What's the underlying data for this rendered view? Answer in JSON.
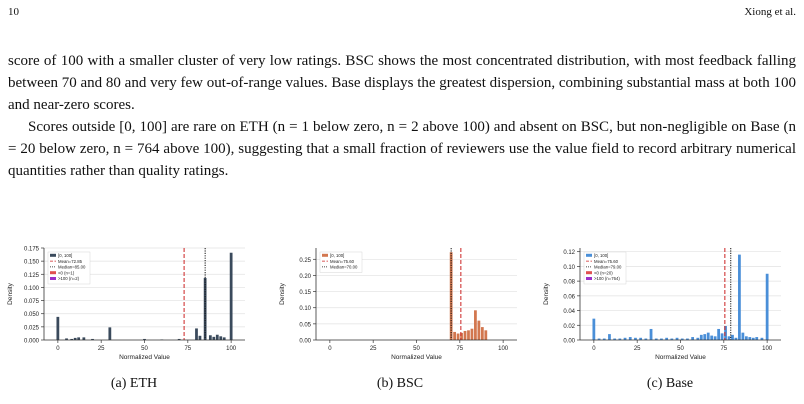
{
  "header": {
    "page_number": "10",
    "authors": "Xiong et al."
  },
  "paragraphs": [
    "score of 100 with a smaller cluster of very low ratings. BSC shows the most concentrated distribution, with most feedback falling between 70 and 80 and very few out-of-range values. Base displays the greatest dispersion, combining substantial mass at both 100 and near-zero scores.",
    "Scores outside [0, 100] are rare on ETH (n = 1 below zero, n = 2 above 100) and absent on BSC, but non-negligible on Base (n = 20 below zero, n = 764 above 100), suggesting that a small fraction of reviewers use the value field to record arbitrary numerical quantities rather than quality ratings."
  ],
  "colors": {
    "eth": "#3a4a5c",
    "bsc": "#d2774f",
    "base": "#4a8fd8",
    "mean": "#cc2222",
    "median": "#111111",
    "below": "#e05050",
    "above": "#9b30c8"
  },
  "chart_data": [
    {
      "type": "bar",
      "caption": "(a) ETH",
      "xlabel": "Normalized Value",
      "ylabel": "Density",
      "xlim": [
        -8,
        108
      ],
      "ylim": [
        0,
        0.175
      ],
      "xticks": [
        0,
        25,
        50,
        75,
        100
      ],
      "yticks": [
        "0.000",
        "0.025",
        "0.050",
        "0.075",
        "0.100",
        "0.125",
        "0.150",
        "0.175"
      ],
      "grid": true,
      "legend_position": "top-left",
      "legend": [
        "[0, 100]",
        "Mean=72.85",
        "Median=85.00",
        "<0 (n=1)",
        ">100 (n=2)"
      ],
      "mean": 72.85,
      "median": 85.0,
      "bar_color": "#3a4a5c",
      "bins": [
        {
          "x": 0,
          "y": 0.044
        },
        {
          "x": 5,
          "y": 0.003
        },
        {
          "x": 8,
          "y": 0.002
        },
        {
          "x": 10,
          "y": 0.004
        },
        {
          "x": 12,
          "y": 0.005
        },
        {
          "x": 15,
          "y": 0.005
        },
        {
          "x": 20,
          "y": 0.002
        },
        {
          "x": 30,
          "y": 0.024
        },
        {
          "x": 50,
          "y": 0.002
        },
        {
          "x": 60,
          "y": 0.001
        },
        {
          "x": 70,
          "y": 0.002
        },
        {
          "x": 80,
          "y": 0.022
        },
        {
          "x": 82,
          "y": 0.008
        },
        {
          "x": 85,
          "y": 0.118
        },
        {
          "x": 88,
          "y": 0.009
        },
        {
          "x": 90,
          "y": 0.006
        },
        {
          "x": 92,
          "y": 0.01
        },
        {
          "x": 94,
          "y": 0.007
        },
        {
          "x": 96,
          "y": 0.005
        },
        {
          "x": 100,
          "y": 0.166
        }
      ]
    },
    {
      "type": "bar",
      "caption": "(b) BSC",
      "xlabel": "Normalized Value",
      "ylabel": "Density",
      "xlim": [
        -8,
        108
      ],
      "ylim": [
        0,
        0.285
      ],
      "xticks": [
        0,
        25,
        50,
        75,
        100
      ],
      "yticks": [
        "0.00",
        "0.05",
        "0.10",
        "0.15",
        "0.20",
        "0.25"
      ],
      "grid": true,
      "legend_position": "top-left",
      "legend": [
        "[0, 100]",
        "Mean=75.60",
        "Median=70.00"
      ],
      "mean": 75.6,
      "median": 70.0,
      "bar_color": "#d2774f",
      "bins": [
        {
          "x": 70,
          "y": 0.272
        },
        {
          "x": 72,
          "y": 0.025
        },
        {
          "x": 74,
          "y": 0.02
        },
        {
          "x": 76,
          "y": 0.022
        },
        {
          "x": 78,
          "y": 0.028
        },
        {
          "x": 80,
          "y": 0.03
        },
        {
          "x": 82,
          "y": 0.035
        },
        {
          "x": 84,
          "y": 0.092
        },
        {
          "x": 86,
          "y": 0.06
        },
        {
          "x": 88,
          "y": 0.04
        },
        {
          "x": 90,
          "y": 0.03
        }
      ]
    },
    {
      "type": "bar",
      "caption": "(c) Base",
      "xlabel": "Normalized Value",
      "ylabel": "Density",
      "xlim": [
        -8,
        108
      ],
      "ylim": [
        0,
        0.125
      ],
      "xticks": [
        0,
        25,
        50,
        75,
        100
      ],
      "yticks": [
        "0.00",
        "0.02",
        "0.04",
        "0.06",
        "0.08",
        "0.10",
        "0.12"
      ],
      "grid": true,
      "legend_position": "top-left",
      "legend": [
        "[0, 100]",
        "Mean=75.60",
        "Median=79.00",
        "<0 (n=20)",
        ">100 (n=764)"
      ],
      "mean": 75.6,
      "median": 79.0,
      "bar_color": "#4a8fd8",
      "bins": [
        {
          "x": 0,
          "y": 0.029
        },
        {
          "x": 3,
          "y": 0.002
        },
        {
          "x": 6,
          "y": 0.002
        },
        {
          "x": 9,
          "y": 0.008
        },
        {
          "x": 12,
          "y": 0.002
        },
        {
          "x": 15,
          "y": 0.002
        },
        {
          "x": 18,
          "y": 0.003
        },
        {
          "x": 21,
          "y": 0.004
        },
        {
          "x": 24,
          "y": 0.003
        },
        {
          "x": 27,
          "y": 0.003
        },
        {
          "x": 30,
          "y": 0.002
        },
        {
          "x": 33,
          "y": 0.015
        },
        {
          "x": 36,
          "y": 0.002
        },
        {
          "x": 39,
          "y": 0.002
        },
        {
          "x": 42,
          "y": 0.003
        },
        {
          "x": 45,
          "y": 0.002
        },
        {
          "x": 48,
          "y": 0.003
        },
        {
          "x": 51,
          "y": 0.002
        },
        {
          "x": 54,
          "y": 0.002
        },
        {
          "x": 57,
          "y": 0.004
        },
        {
          "x": 60,
          "y": 0.003
        },
        {
          "x": 62,
          "y": 0.007
        },
        {
          "x": 64,
          "y": 0.008
        },
        {
          "x": 66,
          "y": 0.01
        },
        {
          "x": 68,
          "y": 0.006
        },
        {
          "x": 70,
          "y": 0.005
        },
        {
          "x": 72,
          "y": 0.015
        },
        {
          "x": 74,
          "y": 0.009
        },
        {
          "x": 76,
          "y": 0.019
        },
        {
          "x": 78,
          "y": 0.005
        },
        {
          "x": 80,
          "y": 0.007
        },
        {
          "x": 82,
          "y": 0.003
        },
        {
          "x": 84,
          "y": 0.116
        },
        {
          "x": 86,
          "y": 0.01
        },
        {
          "x": 88,
          "y": 0.005
        },
        {
          "x": 90,
          "y": 0.004
        },
        {
          "x": 92,
          "y": 0.003
        },
        {
          "x": 94,
          "y": 0.004
        },
        {
          "x": 97,
          "y": 0.003
        },
        {
          "x": 100,
          "y": 0.09
        }
      ]
    }
  ]
}
